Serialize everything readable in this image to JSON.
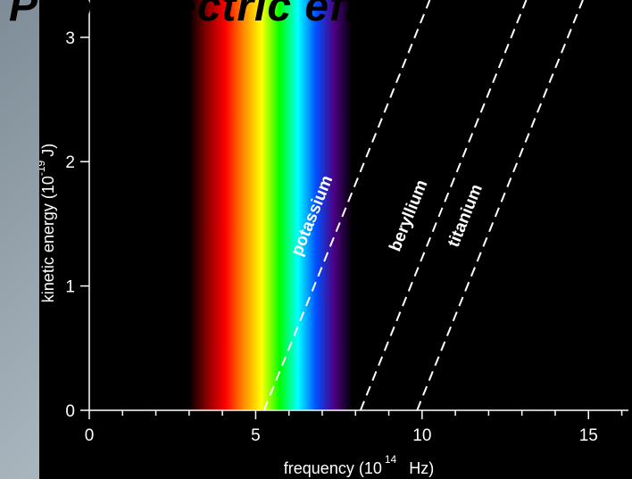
{
  "slide": {
    "title": "Photoelectric effect"
  },
  "chart_data": {
    "type": "line",
    "title": "",
    "xlabel": "frequency",
    "xlabel_unit_prefix": "(10",
    "xlabel_unit_exp": "14",
    "xlabel_unit_suffix": "Hz)",
    "ylabel": "kinetic energy",
    "ylabel_unit_prefix": "(10",
    "ylabel_unit_exp": "-19",
    "ylabel_unit_suffix": "J)",
    "xlim": [
      0,
      16.2
    ],
    "ylim": [
      0,
      3.3
    ],
    "x_ticks": [
      0,
      5,
      10,
      15
    ],
    "x_minor_ticks": [
      1,
      2,
      3,
      4,
      6,
      7,
      8,
      9,
      11,
      12,
      13,
      14,
      16
    ],
    "y_ticks": [
      0,
      1,
      2,
      3
    ],
    "grid": false,
    "visible_spectrum": {
      "x_start": 3.0,
      "x_end": 7.9,
      "colors": [
        "#000000",
        "#8b0000",
        "#ff0000",
        "#ff8a00",
        "#ffff00",
        "#00ff00",
        "#00ffff",
        "#0050ff",
        "#4b0082",
        "#000000"
      ]
    },
    "series": [
      {
        "name": "potassium",
        "threshold_x": 5.25,
        "slope": 0.6626,
        "style": "dashed",
        "color": "#ffffff"
      },
      {
        "name": "beryllium",
        "threshold_x": 8.15,
        "slope": 0.6626,
        "style": "dashed",
        "color": "#ffffff"
      },
      {
        "name": "titanium",
        "threshold_x": 9.85,
        "slope": 0.6626,
        "style": "dashed",
        "color": "#ffffff"
      }
    ]
  }
}
